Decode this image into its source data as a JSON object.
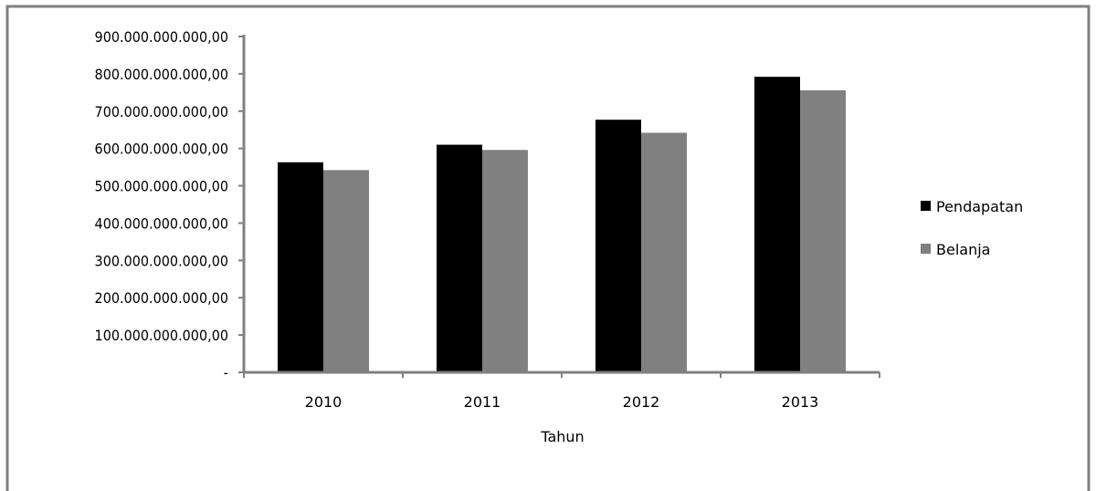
{
  "chart_data": {
    "type": "bar",
    "categories": [
      "2010",
      "2011",
      "2012",
      "2013"
    ],
    "series": [
      {
        "name": "Pendapatan",
        "color": "#000000",
        "values": [
          563000000000,
          610000000000,
          677000000000,
          792000000000
        ]
      },
      {
        "name": "Belanja",
        "color": "#808080",
        "values": [
          542000000000,
          596000000000,
          642000000000,
          756000000000
        ]
      }
    ],
    "xlabel": "Tahun",
    "ylabel": "",
    "ylim": [
      0,
      900000000000
    ],
    "yticks": [
      0,
      100000000000,
      200000000000,
      300000000000,
      400000000000,
      500000000000,
      600000000000,
      700000000000,
      800000000000,
      900000000000
    ],
    "ytick_labels": [
      "-",
      "100.000.000.000,00",
      "200.000.000.000,00",
      "300.000.000.000,00",
      "400.000.000.000,00",
      "500.000.000.000,00",
      "600.000.000.000,00",
      "700.000.000.000,00",
      "800.000.000.000,00",
      "900.000.000.000,00"
    ],
    "grid": false,
    "legend_position": "right"
  }
}
